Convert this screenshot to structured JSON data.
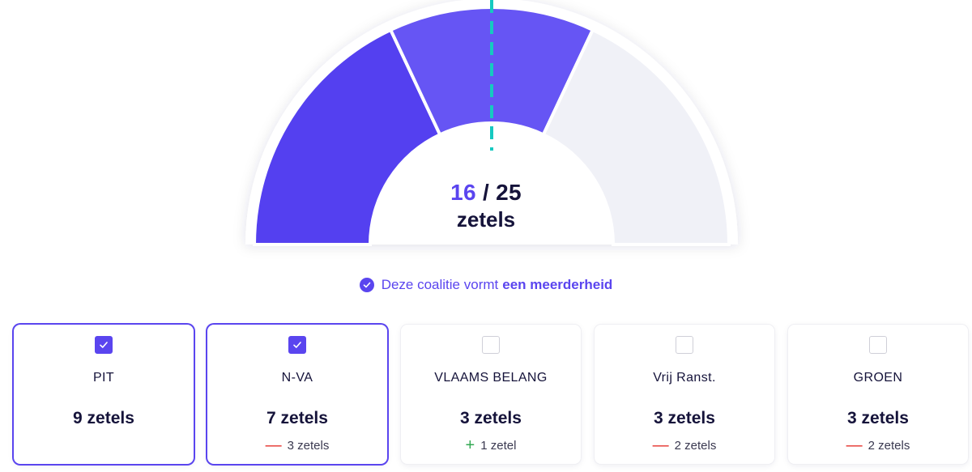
{
  "gauge": {
    "selected": "16",
    "separator": "/",
    "total": "25",
    "unit": "zetels",
    "segments": [
      {
        "party": "PIT",
        "seats": 9,
        "color": "#5440f0"
      },
      {
        "party": "N-VA",
        "seats": 7,
        "color": "#6655f4"
      },
      {
        "party": "rest",
        "seats": 9,
        "color": "#f0f1f7"
      }
    ],
    "majority_line_color": "#16c9c0"
  },
  "majority": {
    "text": "Deze coalitie vormt",
    "emphasis": "een meerderheid",
    "icon": "check-circle-icon"
  },
  "parties": [
    {
      "name": "PIT",
      "seats": "9 zetels",
      "selected": true,
      "change_sign": "",
      "change": ""
    },
    {
      "name": "N-VA",
      "seats": "7 zetels",
      "selected": true,
      "change_sign": "minus",
      "change": "3 zetels"
    },
    {
      "name": "VLAAMS BELANG",
      "seats": "3 zetels",
      "selected": false,
      "change_sign": "plus",
      "change": "1 zetel"
    },
    {
      "name": "Vrij Ranst.",
      "seats": "3 zetels",
      "selected": false,
      "change_sign": "minus",
      "change": "2 zetels"
    },
    {
      "name": "GROEN",
      "seats": "3 zetels",
      "selected": false,
      "change_sign": "minus",
      "change": "2 zetels"
    }
  ],
  "colors": {
    "accent": "#5a45ef",
    "minus": "#e5302b",
    "plus": "#32a852"
  }
}
